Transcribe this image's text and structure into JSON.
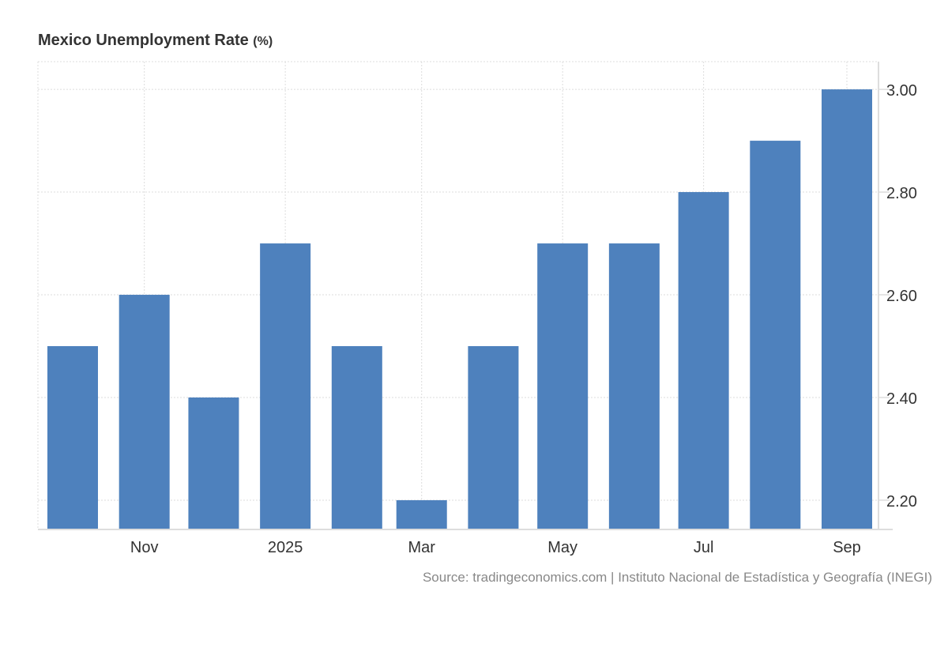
{
  "chart_data": {
    "type": "bar",
    "title": "Mexico Unemployment Rate",
    "unit": "(%)",
    "dates": [
      "2024-10-01",
      "2024-11-01",
      "2024-12-01",
      "2025-01-01",
      "2025-02-01",
      "2025-03-01",
      "2025-04-01",
      "2025-05-01",
      "2025-06-01",
      "2025-07-01",
      "2025-08-01",
      "2025-09-01"
    ],
    "values": [
      2.5,
      2.6,
      2.4,
      2.7,
      2.5,
      2.2,
      2.5,
      2.7,
      2.7,
      2.8,
      2.9,
      3.0
    ],
    "x_ticks": [
      {
        "date": "2024-11-01",
        "label": "Nov"
      },
      {
        "date": "2025-01-01",
        "label": "2025"
      },
      {
        "date": "2025-03-01",
        "label": "Mar"
      },
      {
        "date": "2025-05-01",
        "label": "May"
      },
      {
        "date": "2025-07-01",
        "label": "Jul"
      },
      {
        "date": "2025-09-01",
        "label": "Sep"
      }
    ],
    "y_ticks": [
      2.2,
      2.4,
      2.6,
      2.8,
      3.0
    ],
    "y_tick_labels": [
      "2.20",
      "2.40",
      "2.60",
      "2.80",
      "3.00"
    ],
    "ylim": [
      2.143,
      3.054
    ],
    "y_axis_position": "right",
    "grid": true,
    "bar_color": "#4e81bd",
    "source": "Source: tradingeconomics.com | Instituto Nacional de Estadística y Geografía (INEGI)"
  }
}
